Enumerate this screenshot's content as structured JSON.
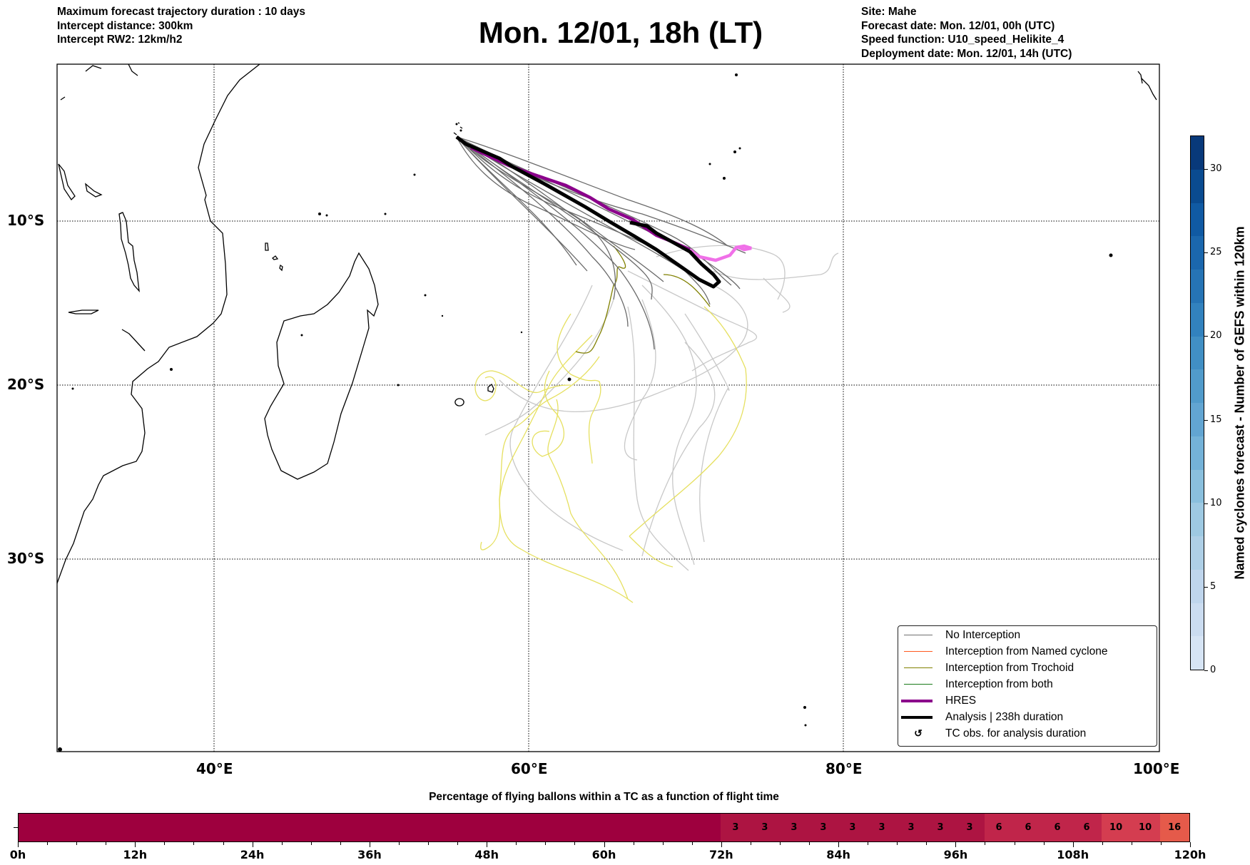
{
  "header": {
    "left": [
      "Maximum forecast trajectory duration : 10 days",
      "Intercept distance: 300km",
      "Intercept RW2: 12km/h2"
    ],
    "title": "Mon. 12/01, 18h (LT)",
    "right": [
      "Site: Mahe",
      "Forecast date: Mon. 12/01, 00h (UTC)",
      "Speed function: U10_speed_Helikite_4",
      "Deployment date: Mon. 12/01, 14h (UTC)"
    ]
  },
  "map": {
    "lon_labels": [
      "40°E",
      "60°E",
      "80°E",
      "100°E"
    ],
    "lat_labels": [
      "10°S",
      "20°S",
      "30°S"
    ],
    "legend": [
      {
        "label": "No Interception",
        "color": "#707070",
        "icon": "line"
      },
      {
        "label": "Interception from Named cyclone",
        "color": "#ff5a1f",
        "icon": "line"
      },
      {
        "label": "Interception from Trochoid",
        "color": "#808000",
        "icon": "line"
      },
      {
        "label": "Interception from both",
        "color": "#1a7a1a",
        "icon": "line"
      },
      {
        "label": "HRES",
        "color": "#8b008b",
        "icon": "thick-line"
      },
      {
        "label": "Analysis | 238h duration",
        "color": "#000000",
        "icon": "thick-line"
      },
      {
        "label": "TC obs. for analysis duration",
        "color": "#000000",
        "icon": "loop-arrow-icon"
      }
    ]
  },
  "colorbar": {
    "label": "Named cyclones forecast - Number of GEFS within 120km",
    "ticks": [
      "0",
      "5",
      "10",
      "15",
      "20",
      "25",
      "30"
    ],
    "range": [
      0,
      32
    ],
    "colors": [
      "#d6e4f4",
      "#cbdcf0",
      "#bfd5ec",
      "#aecfe6",
      "#9ec9e2",
      "#8abfdd",
      "#74b2d8",
      "#62a5d2",
      "#519bcb",
      "#418fc4",
      "#3282be",
      "#2674b5",
      "#1b67ad",
      "#105aa3",
      "#0a4b90",
      "#08397a"
    ]
  },
  "chart_data": {
    "type": "heatmap",
    "title": "Percentage of flying ballons within a TC as a function of flight time",
    "x_tick_labels": [
      "0h",
      "12h",
      "24h",
      "36h",
      "48h",
      "60h",
      "72h",
      "84h",
      "96h",
      "108h",
      "120h"
    ],
    "x_range_hours": [
      0,
      120
    ],
    "bin_hours": 3,
    "values": [
      0,
      0,
      0,
      0,
      0,
      0,
      0,
      0,
      0,
      0,
      0,
      0,
      0,
      0,
      0,
      0,
      0,
      0,
      0,
      0,
      0,
      0,
      0,
      0,
      3,
      3,
      3,
      3,
      3,
      3,
      3,
      3,
      3,
      6,
      6,
      6,
      6,
      10,
      10,
      16
    ],
    "color_by_value": {
      "0": "#9e003e",
      "3": "#ad1442",
      "6": "#c0254a",
      "10": "#d43d50",
      "16": "#e55a4a"
    }
  }
}
